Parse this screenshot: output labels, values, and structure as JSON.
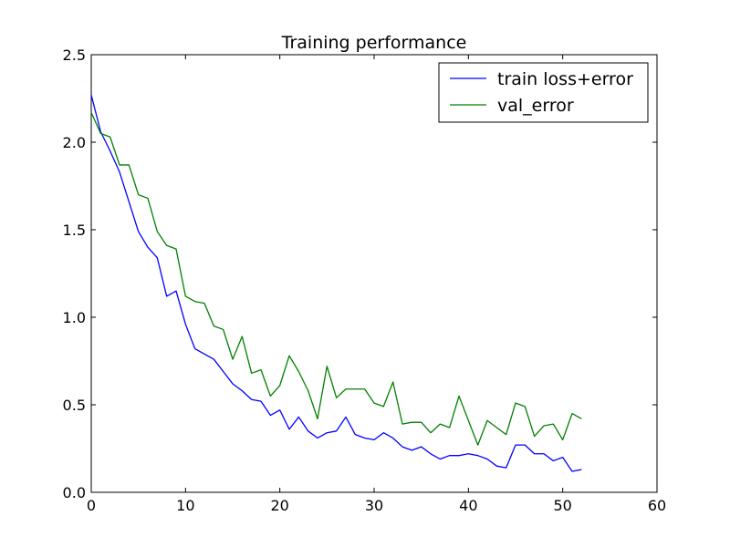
{
  "chart_data": {
    "type": "line",
    "title": "Training performance",
    "xlabel": "",
    "ylabel": "",
    "xlim": [
      0,
      60
    ],
    "ylim": [
      0.0,
      2.5
    ],
    "xticks": [
      0,
      10,
      20,
      30,
      40,
      50,
      60
    ],
    "xtick_labels": [
      "0",
      "10",
      "20",
      "30",
      "40",
      "50",
      "60"
    ],
    "yticks": [
      0.0,
      0.5,
      1.0,
      1.5,
      2.0,
      2.5
    ],
    "ytick_labels": [
      "0.0",
      "0.5",
      "1.0",
      "1.5",
      "2.0",
      "2.5"
    ],
    "grid": false,
    "legend_position": "top-right",
    "series": [
      {
        "name": "train loss+error",
        "color": "#0000ff",
        "x": [
          0,
          1,
          2,
          3,
          4,
          5,
          6,
          7,
          8,
          9,
          10,
          11,
          12,
          13,
          14,
          15,
          16,
          17,
          18,
          19,
          20,
          21,
          22,
          23,
          24,
          25,
          26,
          27,
          28,
          29,
          30,
          31,
          32,
          33,
          34,
          35,
          36,
          37,
          38,
          39,
          40,
          41,
          42,
          43,
          44,
          45,
          46,
          47,
          48,
          49,
          50,
          51,
          52
        ],
        "values": [
          2.27,
          2.06,
          1.95,
          1.83,
          1.66,
          1.49,
          1.4,
          1.34,
          1.12,
          1.15,
          0.96,
          0.82,
          0.79,
          0.76,
          0.69,
          0.62,
          0.58,
          0.53,
          0.52,
          0.44,
          0.47,
          0.36,
          0.43,
          0.35,
          0.31,
          0.34,
          0.35,
          0.43,
          0.33,
          0.31,
          0.3,
          0.34,
          0.31,
          0.26,
          0.24,
          0.26,
          0.22,
          0.19,
          0.21,
          0.21,
          0.22,
          0.21,
          0.19,
          0.15,
          0.14,
          0.27,
          0.27,
          0.22,
          0.22,
          0.18,
          0.2,
          0.12,
          0.13
        ]
      },
      {
        "name": "val_error",
        "color": "#008000",
        "x": [
          0,
          1,
          2,
          3,
          4,
          5,
          6,
          7,
          8,
          9,
          10,
          11,
          12,
          13,
          14,
          15,
          16,
          17,
          18,
          19,
          20,
          21,
          22,
          23,
          24,
          25,
          26,
          27,
          28,
          29,
          30,
          31,
          32,
          33,
          34,
          35,
          36,
          37,
          38,
          39,
          40,
          41,
          42,
          43,
          44,
          45,
          46,
          47,
          48,
          49,
          50,
          51,
          52
        ],
        "values": [
          2.17,
          2.05,
          2.03,
          1.87,
          1.87,
          1.7,
          1.68,
          1.49,
          1.41,
          1.39,
          1.12,
          1.09,
          1.08,
          0.95,
          0.93,
          0.76,
          0.89,
          0.68,
          0.7,
          0.55,
          0.61,
          0.78,
          0.69,
          0.58,
          0.42,
          0.72,
          0.54,
          0.59,
          0.59,
          0.59,
          0.51,
          0.49,
          0.63,
          0.39,
          0.4,
          0.4,
          0.34,
          0.39,
          0.37,
          0.55,
          0.41,
          0.27,
          0.41,
          0.37,
          0.33,
          0.51,
          0.49,
          0.32,
          0.38,
          0.39,
          0.3,
          0.45,
          0.42
        ]
      }
    ]
  }
}
